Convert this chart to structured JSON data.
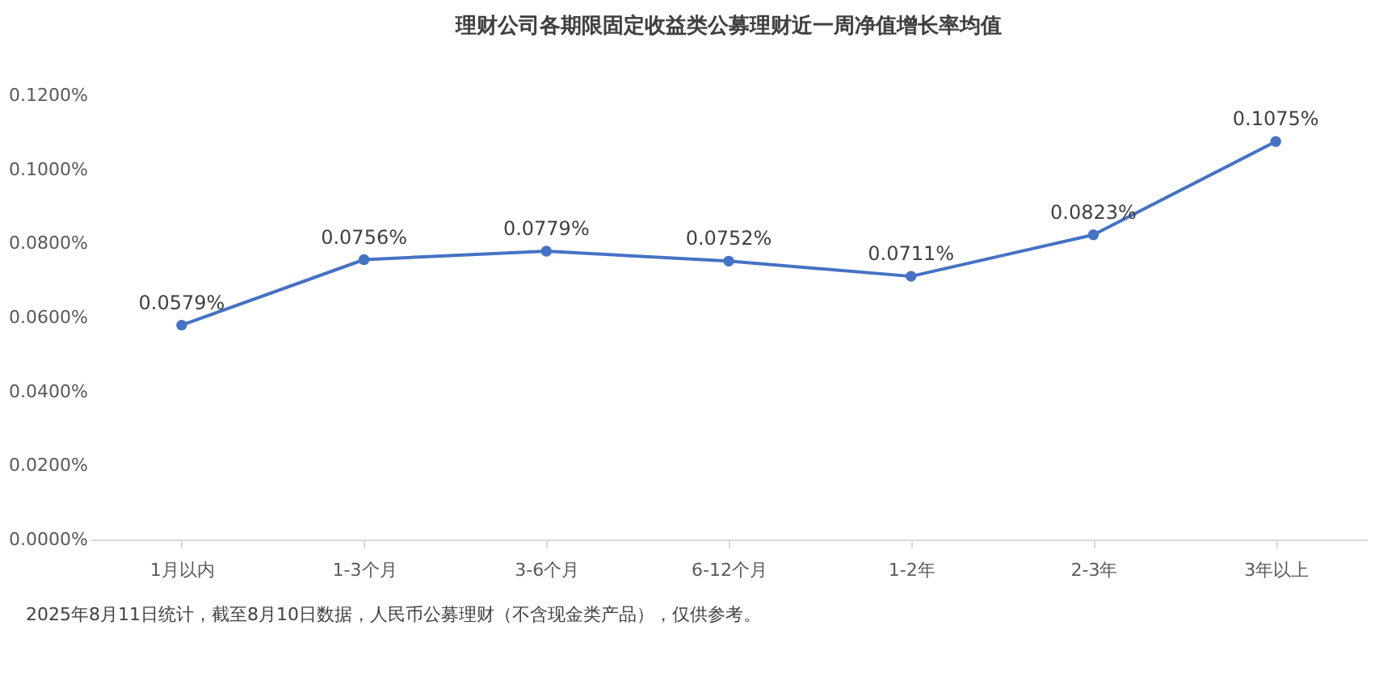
{
  "chart_data": {
    "type": "line",
    "title": "理财公司各期限固定收益类公募理财近一周净值增长率均值",
    "categories": [
      "1月以内",
      "1-3个月",
      "3-6个月",
      "6-12个月",
      "1-2年",
      "2-3年",
      "3年以上"
    ],
    "series": [
      {
        "color": "#4472c4",
        "values": [
          0.0579,
          0.0756,
          0.0779,
          0.0752,
          0.0711,
          0.0823,
          0.1075
        ],
        "value_labels": [
          "0.0579%",
          "0.0756%",
          "0.0779%",
          "0.0752%",
          "0.0711%",
          "0.0823%",
          "0.1075%"
        ]
      }
    ],
    "ylim": [
      0,
      0.12
    ],
    "yticks": [
      {
        "value": 0,
        "label": "0.0000%"
      },
      {
        "value": 0.02,
        "label": "0.0200%"
      },
      {
        "value": 0.04,
        "label": "0.0400%"
      },
      {
        "value": 0.06,
        "label": "0.0600%"
      },
      {
        "value": 0.08,
        "label": "0.0800%"
      },
      {
        "value": 0.1,
        "label": "0.1000%"
      },
      {
        "value": 0.12,
        "label": "0.1200%"
      }
    ],
    "grid": false,
    "marker": "circle",
    "line_style": "solid",
    "annotations": [
      "2025年8月11日统计，截至8月10日数据，人民币公募理财（不含现金类产品），仅供参考。"
    ]
  }
}
